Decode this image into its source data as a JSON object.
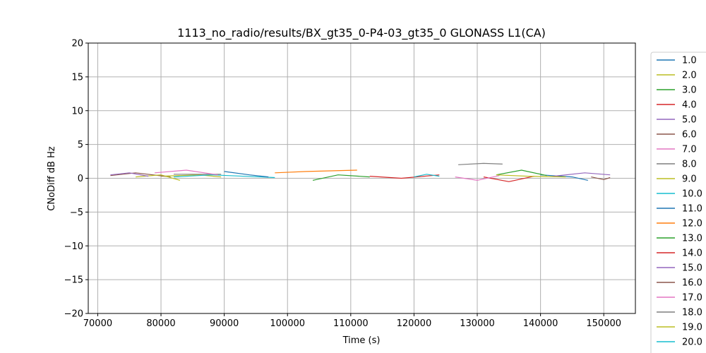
{
  "chart_data": {
    "type": "line",
    "title": "1113_no_radio/results/BX_gt35_0-P4-03_gt35_0 GLONASS L1(CA)",
    "xlabel": "Time (s)",
    "ylabel": "CNoDiff dB Hz",
    "xlim": [
      68500,
      155000
    ],
    "ylim": [
      -20,
      20
    ],
    "x_ticks": [
      70000,
      80000,
      90000,
      100000,
      110000,
      120000,
      130000,
      140000,
      150000
    ],
    "x_tick_labels": [
      "70000",
      "80000",
      "90000",
      "100000",
      "110000",
      "120000",
      "130000",
      "140000",
      "150000"
    ],
    "y_ticks": [
      -20,
      -15,
      -10,
      -5,
      0,
      5,
      10,
      15,
      20
    ],
    "y_tick_labels": [
      "−20",
      "−15",
      "−10",
      "−5",
      "0",
      "5",
      "10",
      "15",
      "20"
    ],
    "grid": true,
    "legend_position": "right-outside",
    "series": [
      {
        "name": "1.0",
        "color": "#1f77b4",
        "x": [
          140000,
          145000,
          147500
        ],
        "y": [
          0.5,
          0.2,
          -0.3
        ]
      },
      {
        "name": "2.0",
        "color": "#bcbd22",
        "x": [
          80000,
          86000,
          89500
        ],
        "y": [
          0.3,
          0.5,
          0.2
        ]
      },
      {
        "name": "3.0",
        "color": "#2ca02c",
        "x": [
          133000,
          137000,
          141000
        ],
        "y": [
          0.5,
          1.2,
          0.4
        ]
      },
      {
        "name": "4.0",
        "color": "#d62728",
        "x": [
          131000,
          135000,
          139000
        ],
        "y": [
          0.2,
          -0.5,
          0.3
        ]
      },
      {
        "name": "5.0",
        "color": "#9467bd",
        "x": [
          142000,
          147000,
          151000
        ],
        "y": [
          0.3,
          0.8,
          0.5
        ]
      },
      {
        "name": "6.0",
        "color": "#8c564b",
        "x": [
          72000,
          76000,
          81500
        ],
        "y": [
          0.4,
          0.8,
          0.2
        ]
      },
      {
        "name": "7.0",
        "color": "#e377c2",
        "x": [
          126500,
          130000,
          133500
        ],
        "y": [
          0.2,
          -0.3,
          0.4
        ]
      },
      {
        "name": "8.0",
        "color": "#7f7f7f",
        "x": [
          82000,
          86000,
          89500
        ],
        "y": [
          0.6,
          0.6,
          0.6
        ]
      },
      {
        "name": "9.0",
        "color": "#bcbd22",
        "x": [
          76000,
          80000,
          83000
        ],
        "y": [
          0.2,
          0.5,
          -0.3
        ]
      },
      {
        "name": "10.0",
        "color": "#17becf",
        "x": [
          82000,
          88000,
          98000
        ],
        "y": [
          0.2,
          0.5,
          0.1
        ]
      },
      {
        "name": "11.0",
        "color": "#1f77b4",
        "x": [
          90000,
          94000,
          97000
        ],
        "y": [
          1.0,
          0.5,
          0.2
        ]
      },
      {
        "name": "12.0",
        "color": "#ff7f0e",
        "x": [
          98000,
          103000,
          111000
        ],
        "y": [
          0.8,
          1.0,
          1.2
        ]
      },
      {
        "name": "13.0",
        "color": "#2ca02c",
        "x": [
          104000,
          108000,
          113000
        ],
        "y": [
          -0.3,
          0.5,
          0.2
        ]
      },
      {
        "name": "14.0",
        "color": "#d62728",
        "x": [
          113000,
          118000,
          124000
        ],
        "y": [
          0.3,
          0.0,
          0.5
        ]
      },
      {
        "name": "15.0",
        "color": "#9467bd",
        "x": [
          72000,
          75000,
          78000
        ],
        "y": [
          0.5,
          0.8,
          0.3
        ]
      },
      {
        "name": "16.0",
        "color": "#8c564b",
        "x": [
          148000,
          150000,
          151000
        ],
        "y": [
          0.2,
          -0.2,
          0.1
        ]
      },
      {
        "name": "17.0",
        "color": "#e377c2",
        "x": [
          79000,
          84000,
          89000
        ],
        "y": [
          0.8,
          1.2,
          0.5
        ]
      },
      {
        "name": "18.0",
        "color": "#7f7f7f",
        "x": [
          127000,
          131000,
          134000
        ],
        "y": [
          2.0,
          2.2,
          2.1
        ]
      },
      {
        "name": "19.0",
        "color": "#bcbd22",
        "x": [
          133000,
          138000,
          144000
        ],
        "y": [
          0.5,
          0.3,
          0.2
        ]
      },
      {
        "name": "20.0",
        "color": "#17becf",
        "x": [
          120000,
          122000,
          124000
        ],
        "y": [
          0.2,
          0.6,
          0.3
        ]
      }
    ]
  }
}
